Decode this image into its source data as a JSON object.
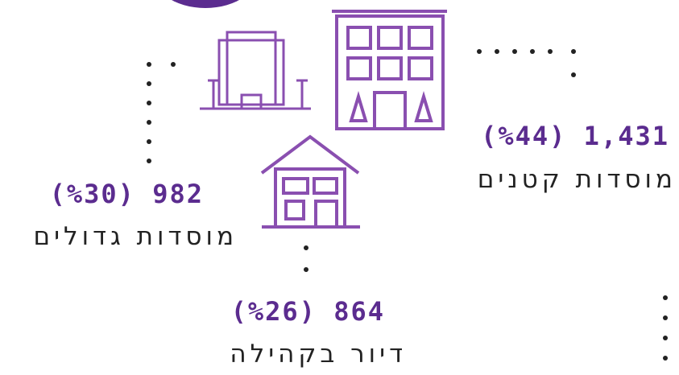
{
  "items": [
    {
      "value": "(%44) 1,431",
      "label": "מוסדות קטנים"
    },
    {
      "value": "(%30) 982",
      "label": "מוסדות גדולים"
    },
    {
      "value": "(%26) 864",
      "label": "דיור בקהילה"
    }
  ]
}
